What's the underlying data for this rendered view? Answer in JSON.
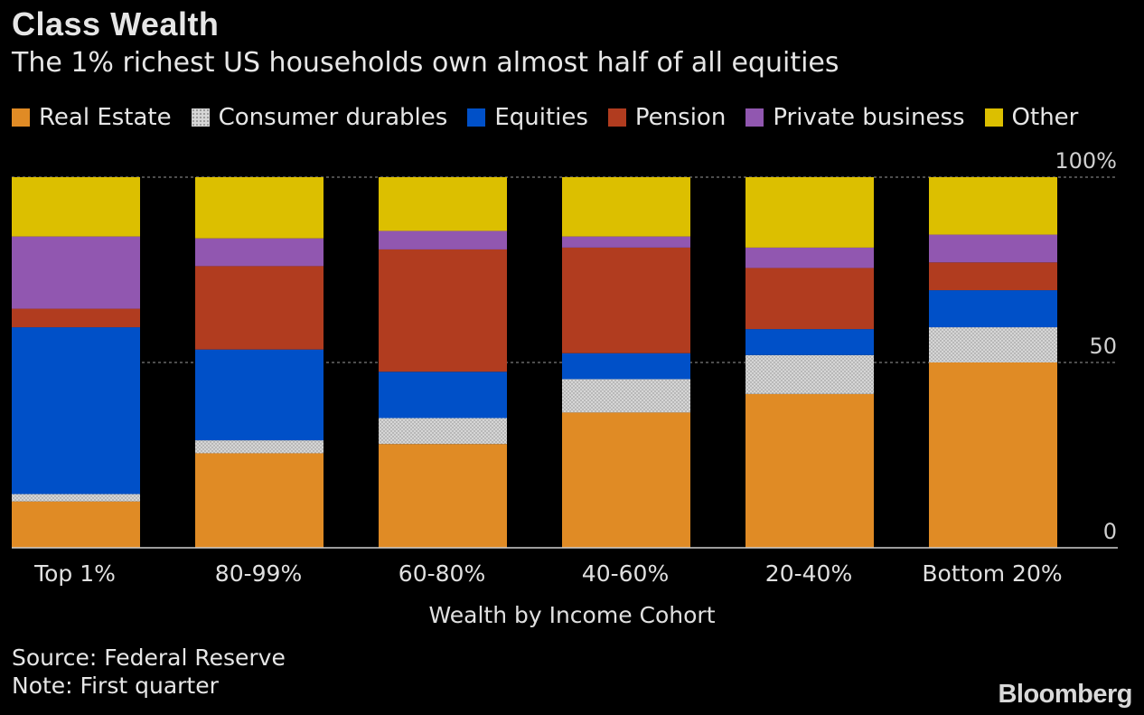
{
  "header": {
    "title": "Class Wealth",
    "subtitle": "The 1% richest US households own almost half of all equities"
  },
  "footer": {
    "source": "Source: Federal Reserve",
    "note": "Note: First quarter",
    "brand": "Bloomberg"
  },
  "chart_data": {
    "type": "bar",
    "stacked": true,
    "title": "Class Wealth",
    "subtitle": "The 1% richest US households own almost half of all equities",
    "xlabel": "Wealth by Income Cohort",
    "ylabel": "",
    "ylim": [
      0,
      100
    ],
    "y_axis_position": "right",
    "y_ticks": [
      {
        "value": 0,
        "label": "0"
      },
      {
        "value": 50,
        "label": "50"
      },
      {
        "value": 100,
        "label": "100%"
      }
    ],
    "grid": true,
    "legend_position": "top",
    "categories": [
      "Top 1%",
      "80-99%",
      "60-80%",
      "40-60%",
      "20-40%",
      "Bottom 20%"
    ],
    "series": [
      {
        "name": "Real Estate",
        "color": "#e08b25",
        "pattern": "",
        "values": [
          12.5,
          25.5,
          28,
          36.5,
          41.5,
          50
        ]
      },
      {
        "name": "Consumer durables",
        "color": "#cccccc",
        "pattern": "dotted",
        "values": [
          2,
          3.5,
          7,
          9,
          10.5,
          9.5
        ]
      },
      {
        "name": "Equities",
        "color": "#0050c8",
        "pattern": "",
        "values": [
          45,
          24.5,
          12.5,
          7,
          7,
          10
        ]
      },
      {
        "name": "Pension",
        "color": "#b13c1f",
        "pattern": "",
        "values": [
          5,
          22.5,
          33,
          28.5,
          16.5,
          7.5
        ]
      },
      {
        "name": "Private business",
        "color": "#9157b0",
        "pattern": "",
        "values": [
          19.5,
          7.5,
          5,
          3,
          5.5,
          7.5
        ]
      },
      {
        "name": "Other",
        "color": "#dcbf00",
        "pattern": "",
        "values": [
          16,
          16.5,
          14.5,
          16,
          19,
          15.5
        ]
      }
    ]
  }
}
